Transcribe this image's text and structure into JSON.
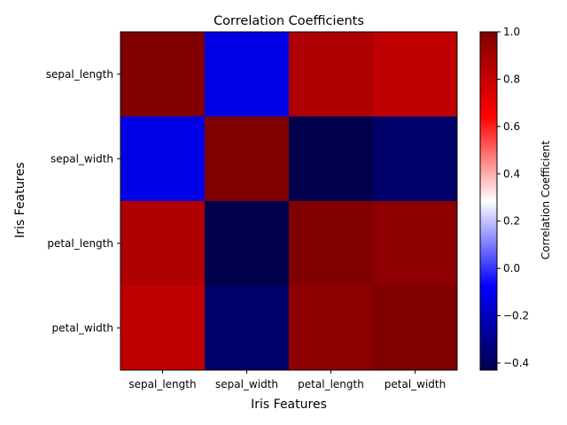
{
  "chart_data": {
    "type": "heatmap",
    "title": "Correlation Coefficients",
    "xlabel": "Iris Features",
    "ylabel": "Iris Features",
    "x_categories": [
      "sepal_length",
      "sepal_width",
      "petal_length",
      "petal_width"
    ],
    "y_categories": [
      "sepal_length",
      "sepal_width",
      "petal_length",
      "petal_width"
    ],
    "values": [
      [
        1.0,
        -0.12,
        0.87,
        0.82
      ],
      [
        -0.12,
        1.0,
        -0.43,
        -0.37
      ],
      [
        0.87,
        -0.43,
        1.0,
        0.96
      ],
      [
        0.82,
        -0.37,
        0.96,
        1.0
      ]
    ],
    "colormap": "seismic",
    "colorbar": {
      "label": "Correlation Coefficient",
      "vmin": -0.43,
      "vmax": 1.0,
      "ticks": [
        -0.4,
        -0.2,
        0.0,
        0.2,
        0.4,
        0.6,
        0.8,
        1.0
      ],
      "tick_labels": [
        "−0.4",
        "−0.2",
        "0.0",
        "0.2",
        "0.4",
        "0.6",
        "0.8",
        "1.0"
      ]
    },
    "grid": false,
    "legend": "colorbar-right"
  }
}
